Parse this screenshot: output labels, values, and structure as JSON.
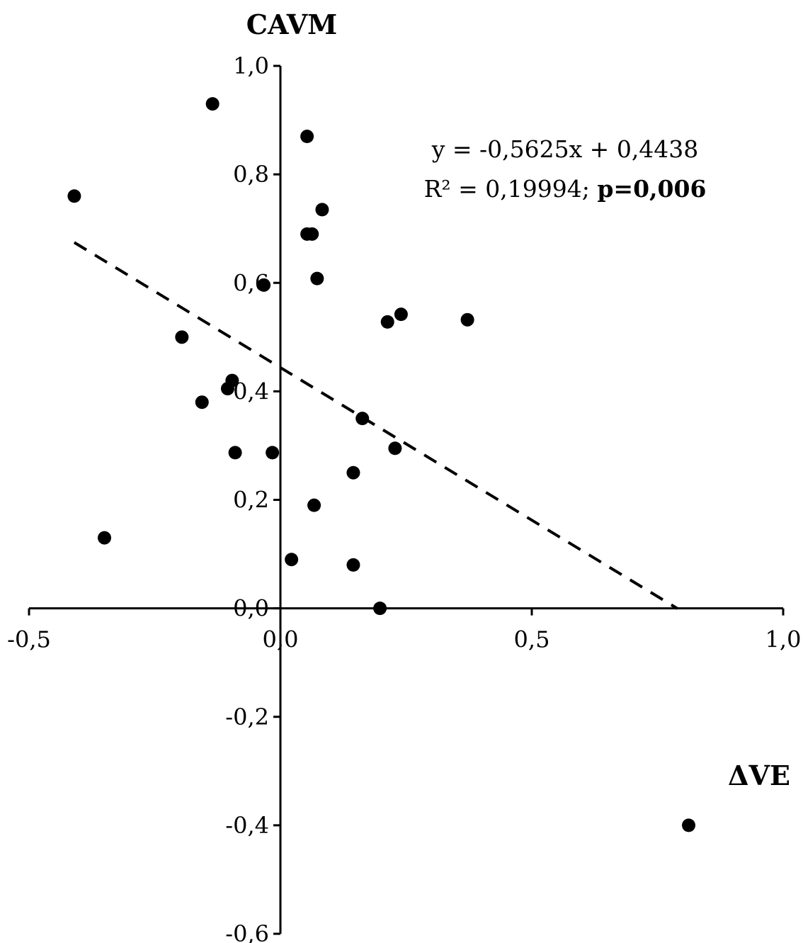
{
  "chart_data": {
    "type": "scatter",
    "title": "",
    "xlabel": "ΔVE",
    "ylabel": "CAVM",
    "xlim": [
      -0.5,
      1.0
    ],
    "ylim": [
      -0.6,
      1.0
    ],
    "grid": false,
    "x_ticks": [
      -0.5,
      0.0,
      0.5,
      1.0
    ],
    "x_tick_labels": [
      "-0,5",
      "0,0",
      "0,5",
      "1,0"
    ],
    "y_ticks": [
      -0.6,
      -0.4,
      -0.2,
      0.0,
      0.2,
      0.4,
      0.6,
      0.8,
      1.0
    ],
    "y_tick_labels": [
      "-0,6",
      "-0,4",
      "-0,2",
      "0,0",
      "0,2",
      "0,4",
      "0,6",
      "0,8",
      "1,0"
    ],
    "points": [
      {
        "x": -0.41,
        "y": 0.76
      },
      {
        "x": -0.135,
        "y": 0.93
      },
      {
        "x": 0.053,
        "y": 0.87
      },
      {
        "x": 0.083,
        "y": 0.735
      },
      {
        "x": 0.053,
        "y": 0.69
      },
      {
        "x": 0.063,
        "y": 0.69
      },
      {
        "x": 0.073,
        "y": 0.608
      },
      {
        "x": -0.033,
        "y": 0.596
      },
      {
        "x": 0.213,
        "y": 0.528
      },
      {
        "x": 0.24,
        "y": 0.542
      },
      {
        "x": 0.372,
        "y": 0.532
      },
      {
        "x": -0.196,
        "y": 0.5
      },
      {
        "x": -0.096,
        "y": 0.42
      },
      {
        "x": -0.105,
        "y": 0.405
      },
      {
        "x": -0.156,
        "y": 0.38
      },
      {
        "x": 0.163,
        "y": 0.35
      },
      {
        "x": -0.09,
        "y": 0.287
      },
      {
        "x": -0.016,
        "y": 0.287
      },
      {
        "x": 0.228,
        "y": 0.295
      },
      {
        "x": 0.145,
        "y": 0.25
      },
      {
        "x": 0.067,
        "y": 0.19
      },
      {
        "x": -0.35,
        "y": 0.13
      },
      {
        "x": 0.022,
        "y": 0.09
      },
      {
        "x": 0.145,
        "y": 0.08
      },
      {
        "x": 0.198,
        "y": 0.0
      },
      {
        "x": 0.812,
        "y": -0.4
      }
    ],
    "trendline": {
      "type": "linear",
      "slope": -0.5625,
      "intercept": 0.4438,
      "x_range": [
        -0.41,
        0.79
      ],
      "style": "dashed",
      "equation_label": "y = -0,5625x + 0,4438",
      "r2_label": "R² = 0,19994; ",
      "p_label": "p=0,006"
    }
  },
  "colors": {
    "axis": "#000000",
    "marker": "#000000",
    "trendline": "#000000",
    "background": "#ffffff"
  }
}
